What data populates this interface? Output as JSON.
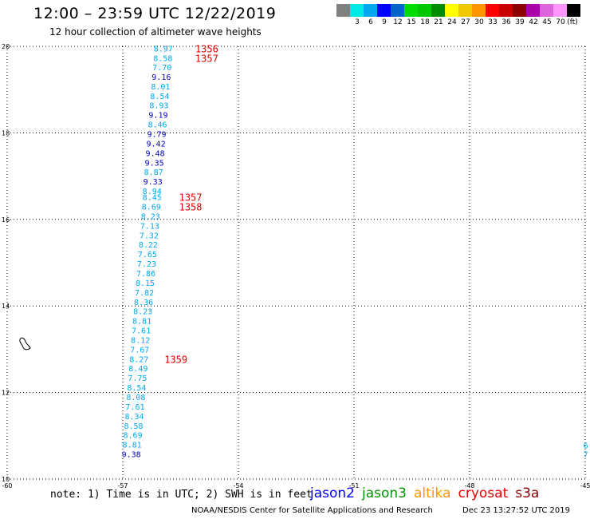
{
  "header": {
    "title": "12:00 – 23:59 UTC 12/22/2019",
    "subtitle": "12 hour collection of altimeter wave heights"
  },
  "legend": {
    "unit": "(ft)",
    "bins": [
      {
        "label": "",
        "color": "#808080"
      },
      {
        "label": "3",
        "color": "#00e8e8"
      },
      {
        "label": "6",
        "color": "#00a8f0"
      },
      {
        "label": "9",
        "color": "#0000ff"
      },
      {
        "label": "12",
        "color": "#0064c8"
      },
      {
        "label": "15",
        "color": "#00dc00"
      },
      {
        "label": "18",
        "color": "#00c800"
      },
      {
        "label": "21",
        "color": "#008c00"
      },
      {
        "label": "24",
        "color": "#ffff00"
      },
      {
        "label": "27",
        "color": "#f0c800"
      },
      {
        "label": "30",
        "color": "#ff9600"
      },
      {
        "label": "33",
        "color": "#ff0000"
      },
      {
        "label": "36",
        "color": "#c80000"
      },
      {
        "label": "39",
        "color": "#8c0000"
      },
      {
        "label": "42",
        "color": "#aa00aa"
      },
      {
        "label": "45",
        "color": "#dc64dc"
      },
      {
        "label": "70",
        "color": "#ff96ff"
      },
      {
        "label": "",
        "color": "#000000"
      }
    ]
  },
  "chart_data": {
    "type": "scatter",
    "xlim": [
      -60,
      -45
    ],
    "ylim": [
      10,
      20
    ],
    "xticks": [
      "-60",
      "-57",
      "-54",
      "-51",
      "-48",
      "-45"
    ],
    "yticks": [
      "10",
      "12",
      "14",
      "16",
      "18",
      "20"
    ],
    "grid": true,
    "colors": {
      "light": "#00a8f0",
      "dark": "#0000c8",
      "time": "#e00000"
    },
    "points": [
      {
        "lon": -55.95,
        "lat": 19.95,
        "value": "8.97",
        "color": "light"
      },
      {
        "lon": -55.96,
        "lat": 19.73,
        "value": "8.58",
        "color": "light"
      },
      {
        "lon": -55.98,
        "lat": 19.52,
        "value": "7.70",
        "color": "light"
      },
      {
        "lon": -56.0,
        "lat": 19.3,
        "value": "9.16",
        "color": "dark"
      },
      {
        "lon": -56.02,
        "lat": 19.08,
        "value": "8.01",
        "color": "light"
      },
      {
        "lon": -56.04,
        "lat": 18.86,
        "value": "8.54",
        "color": "light"
      },
      {
        "lon": -56.06,
        "lat": 18.64,
        "value": "8.93",
        "color": "light"
      },
      {
        "lon": -56.08,
        "lat": 18.42,
        "value": "9.19",
        "color": "dark"
      },
      {
        "lon": -56.1,
        "lat": 18.2,
        "value": "8.46",
        "color": "light"
      },
      {
        "lon": -56.12,
        "lat": 17.98,
        "value": "9.79",
        "color": "dark"
      },
      {
        "lon": -56.14,
        "lat": 17.76,
        "value": "9.42",
        "color": "dark"
      },
      {
        "lon": -56.16,
        "lat": 17.54,
        "value": "9.48",
        "color": "dark"
      },
      {
        "lon": -56.18,
        "lat": 17.32,
        "value": "9.35",
        "color": "dark"
      },
      {
        "lon": -56.2,
        "lat": 17.1,
        "value": "8.87",
        "color": "light"
      },
      {
        "lon": -56.22,
        "lat": 16.88,
        "value": "9.33",
        "color": "dark"
      },
      {
        "lon": -56.24,
        "lat": 16.66,
        "value": "8.94",
        "color": "light"
      },
      {
        "lon": -56.24,
        "lat": 16.52,
        "value": "8.45",
        "color": "light"
      },
      {
        "lon": -56.26,
        "lat": 16.3,
        "value": "8.69",
        "color": "light"
      },
      {
        "lon": -56.28,
        "lat": 16.08,
        "value": "8.23",
        "color": "light"
      },
      {
        "lon": -56.3,
        "lat": 15.86,
        "value": "7.13",
        "color": "light"
      },
      {
        "lon": -56.32,
        "lat": 15.64,
        "value": "7.32",
        "color": "light"
      },
      {
        "lon": -56.34,
        "lat": 15.42,
        "value": "8.22",
        "color": "light"
      },
      {
        "lon": -56.36,
        "lat": 15.2,
        "value": "7.65",
        "color": "light"
      },
      {
        "lon": -56.38,
        "lat": 14.98,
        "value": "7.23",
        "color": "light"
      },
      {
        "lon": -56.4,
        "lat": 14.76,
        "value": "7.86",
        "color": "light"
      },
      {
        "lon": -56.42,
        "lat": 14.54,
        "value": "8.15",
        "color": "light"
      },
      {
        "lon": -56.44,
        "lat": 14.32,
        "value": "7.82",
        "color": "light"
      },
      {
        "lon": -56.46,
        "lat": 14.1,
        "value": "8.36",
        "color": "light"
      },
      {
        "lon": -56.48,
        "lat": 13.88,
        "value": "8.23",
        "color": "light"
      },
      {
        "lon": -56.5,
        "lat": 13.66,
        "value": "8.81",
        "color": "light"
      },
      {
        "lon": -56.52,
        "lat": 13.44,
        "value": "7.61",
        "color": "light"
      },
      {
        "lon": -56.54,
        "lat": 13.22,
        "value": "8.12",
        "color": "light"
      },
      {
        "lon": -56.56,
        "lat": 13.0,
        "value": "7.67",
        "color": "light"
      },
      {
        "lon": -56.58,
        "lat": 12.78,
        "value": "8.27",
        "color": "light"
      },
      {
        "lon": -56.6,
        "lat": 12.56,
        "value": "8.49",
        "color": "light"
      },
      {
        "lon": -56.62,
        "lat": 12.34,
        "value": "7.75",
        "color": "light"
      },
      {
        "lon": -56.64,
        "lat": 12.12,
        "value": "8.54",
        "color": "light"
      },
      {
        "lon": -56.66,
        "lat": 11.9,
        "value": "8.08",
        "color": "light"
      },
      {
        "lon": -56.68,
        "lat": 11.68,
        "value": "7.61",
        "color": "light"
      },
      {
        "lon": -56.7,
        "lat": 11.46,
        "value": "8.34",
        "color": "light"
      },
      {
        "lon": -56.72,
        "lat": 11.24,
        "value": "8.58",
        "color": "light"
      },
      {
        "lon": -56.74,
        "lat": 11.02,
        "value": "8.69",
        "color": "light"
      },
      {
        "lon": -56.76,
        "lat": 10.8,
        "value": "8.81",
        "color": "light"
      },
      {
        "lon": -56.78,
        "lat": 10.58,
        "value": "9.38",
        "color": "dark"
      }
    ],
    "time_labels": [
      {
        "lon": -54.82,
        "lat": 19.95,
        "text": "1356"
      },
      {
        "lon": -54.82,
        "lat": 19.73,
        "text": "1357"
      },
      {
        "lon": -55.24,
        "lat": 16.52,
        "text": "1357"
      },
      {
        "lon": -55.24,
        "lat": 16.3,
        "text": "1358"
      },
      {
        "lon": -55.62,
        "lat": 12.78,
        "text": "1359"
      }
    ],
    "edge_labels": [
      {
        "lon": -45.05,
        "lat": 10.78,
        "text": "6"
      },
      {
        "lon": -45.05,
        "lat": 10.58,
        "text": "7"
      }
    ]
  },
  "note": "note: 1) Time is in UTC; 2) SWH is in feet",
  "satellites": [
    {
      "name": "jason2",
      "color": "#0000ff"
    },
    {
      "name": "jason3",
      "color": "#009600"
    },
    {
      "name": "altika",
      "color": "#ff9600"
    },
    {
      "name": "cryosat",
      "color": "#e00000"
    },
    {
      "name": "s3a",
      "color": "#8c0000"
    }
  ],
  "footer": {
    "left": "NOAA/NESDIS Center for Satellite Applications and Research",
    "right": "Dec 23 13:27:52 UTC 2019"
  }
}
